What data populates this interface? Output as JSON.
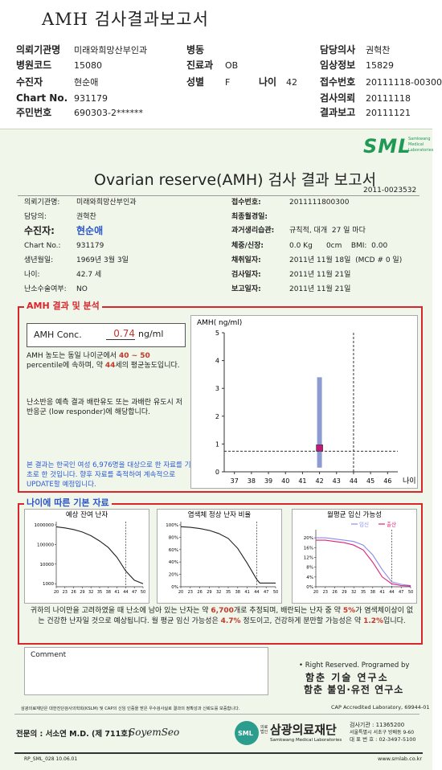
{
  "header": {
    "title": "AMH 검사결과보고서",
    "fields": [
      {
        "label": "의뢰기관명",
        "value": "미래와희망산부인과"
      },
      {
        "label": "병동"
      },
      {
        "label": "담당의사",
        "value": "권혁찬"
      },
      {
        "label": "병원코드",
        "value": "15080"
      },
      {
        "label": "진료과",
        "value": "OB"
      },
      {
        "label": "임상정보",
        "value": "15829"
      },
      {
        "label": "수진자",
        "value": "현순애"
      },
      {
        "label": "성별",
        "value": "F"
      },
      {
        "label": "나이",
        "value": "42"
      },
      {
        "label": "접수번호",
        "value": "20111118-00300"
      },
      {
        "label": "Chart No.",
        "value": "931179"
      },
      {
        "label": "검사의뢰",
        "value": "20111118"
      },
      {
        "label": "주민번호",
        "value": "690303-2******"
      },
      {
        "label": "결과보고",
        "value": "20111121"
      }
    ]
  },
  "report": {
    "logo": "SML",
    "logo_sub": [
      "Samkwang",
      "Medical",
      "Laboratories"
    ],
    "title": "Ovarian reserve(AMH) 검사 결과 보고서",
    "report_no": "2011-0023532",
    "left_fields": [
      {
        "label": "의뢰기관명:",
        "value": "미래와희망산부인과"
      },
      {
        "label": "담당의:",
        "value": "권혁찬"
      },
      {
        "label": "수진자:",
        "value": "현순애"
      },
      {
        "label": "Chart No.:",
        "value": "931179"
      },
      {
        "label": "생년월일:",
        "value": "1969년 3월 3일"
      },
      {
        "label": "나이:",
        "value": "42.7 세"
      },
      {
        "label": "난소수술여부:",
        "value": "NO"
      }
    ],
    "right_fields": [
      {
        "label": "접수번호:",
        "value": "2011111800300"
      },
      {
        "label": "최종월경일:"
      },
      {
        "label": "과거생리습관:",
        "value": "규칙적, 대개  27 일 마다"
      },
      {
        "label": "체중/신장:",
        "value": "0.0 Kg      0cm    BMI:  0.00"
      },
      {
        "label": "채취일자:",
        "value": "2011년 11월 18일  (MCD # 0 일)"
      },
      {
        "label": "검사일자:",
        "value": "2011년 11월 21일"
      },
      {
        "label": "보고일자:",
        "value": "2011년 11월 21일"
      }
    ]
  },
  "result": {
    "heading": "AMH 결과 및 분석",
    "conc_label": "AMH Conc.",
    "conc_value": 0.74,
    "conc_unit": "ng/ml",
    "text1": [
      {
        "text": "AMH 농도는 동일 나이군에서 "
      },
      {
        "text": "40 ~ 50",
        "highlight": true
      },
      {
        "text": " percentile에 속하며, 약 "
      },
      {
        "text": "44",
        "highlight": true
      },
      {
        "text": "세의 평균농도입니다."
      }
    ],
    "text2": "난소반응 예측 결과 배란유도 또는 과배란 유도시 저반응군 (low responder)에 해당합니다.",
    "note": "본 결과는 한국인 여성 6,976명을 대상으로 한 자료를 기초로 한 것입니다. 향후 자료를 축적하여 계속적으로 UPDATE할 예정입니다.",
    "chart": {
      "type": "range",
      "y_label": "AMH( ng/ml)",
      "x_label": "나이",
      "xlim": [
        36.4,
        46.6
      ],
      "ylim": [
        0,
        5
      ],
      "xticks": [
        37,
        38,
        39,
        40,
        41,
        42,
        43,
        44,
        45,
        46
      ],
      "yticks": [
        0,
        1,
        2,
        3,
        4,
        5
      ],
      "range_age": 42,
      "range_low": 0.15,
      "range_high": 3.4,
      "reference_age": 44,
      "marker_color": "#c2187a",
      "range_color": "#8c9cd2"
    }
  },
  "basics": {
    "heading": "나이에 따른 기본 자료",
    "marker_x": 44,
    "charts": [
      {
        "type": "line",
        "title": "예상 잔여 난자",
        "log": true,
        "x": [
          20,
          23,
          26,
          29,
          32,
          35,
          38,
          41,
          44,
          47,
          50
        ],
        "xlim": [
          20,
          50
        ],
        "xticks": [
          20,
          23,
          26,
          29,
          32,
          35,
          38,
          41,
          44,
          47,
          50
        ],
        "ylim": [
          700,
          1000000
        ],
        "yticks": [
          1000,
          10000,
          100000,
          1000000
        ],
        "series": [
          {
            "color": "#222222",
            "values": [
              800000,
              700000,
              580000,
              430000,
              280000,
              150000,
              70000,
              22000,
              4500,
              1500,
              1000
            ]
          }
        ]
      },
      {
        "type": "line",
        "title": "염색체 정상 난자 비율",
        "x": [
          20,
          23,
          26,
          29,
          32,
          35,
          38,
          41,
          44,
          45,
          47,
          50
        ],
        "xlim": [
          20,
          50
        ],
        "xticks": [
          20,
          23,
          26,
          29,
          32,
          35,
          38,
          41,
          44,
          47,
          50
        ],
        "ylim": [
          0,
          100
        ],
        "yticks": [
          {
            "value": 0,
            "label": "0%"
          },
          {
            "value": 20,
            "label": "20%"
          },
          {
            "value": 40,
            "label": "40%"
          },
          {
            "value": 60,
            "label": "60%"
          },
          {
            "value": 80,
            "label": "80%"
          },
          {
            "value": 100,
            "label": "100%"
          }
        ],
        "series": [
          {
            "color": "#222222",
            "values": [
              97,
              96,
              94,
              91,
              86,
              78,
              62,
              38,
              12,
              6,
              6,
              6
            ]
          }
        ]
      },
      {
        "type": "line",
        "title": "월평균 임신 가능성",
        "x": [
          20,
          23,
          26,
          29,
          32,
          35,
          38,
          41,
          44,
          47,
          50
        ],
        "xlim": [
          20,
          50
        ],
        "xticks": [
          20,
          23,
          26,
          29,
          32,
          35,
          38,
          41,
          44,
          47,
          50
        ],
        "ylim": [
          0,
          22
        ],
        "yticks": [
          {
            "value": 0,
            "label": "0%"
          },
          {
            "value": 4,
            "label": "4%"
          },
          {
            "value": 8,
            "label": "8%"
          },
          {
            "value": 12,
            "label": "12%"
          },
          {
            "value": 16,
            "label": "16%"
          },
          {
            "value": 20,
            "label": "20%"
          }
        ],
        "series": [
          {
            "name": "임신",
            "color": "#8a8cf0",
            "values": [
              20,
              20,
              19.5,
              19,
              18.5,
              17,
              13,
              7,
              2,
              1,
              0.5
            ]
          },
          {
            "name": "출산",
            "color": "#e0207a",
            "values": [
              19,
              19,
              18.5,
              18,
              17,
              15,
              10,
              4,
              1.2,
              0.5,
              0.3
            ]
          }
        ]
      }
    ],
    "summary": [
      {
        "text": "귀하의 나이만을 고려하였을 때 난소에 남아 있는 난자는 약 "
      },
      {
        "text": "6,700",
        "highlight": true
      },
      {
        "text": "개로 추정되며, 배란되는 난자 중 약 "
      },
      {
        "text": "5%",
        "highlight": true
      },
      {
        "text": "가 염색체이상이 없는 건강한 난자일 것으로 예상됩니다. 월 평균 임신 가능성은 "
      },
      {
        "text": "4.7%",
        "highlight": true
      },
      {
        "text": " 정도이고, 건강하게 분만할 가능성은 약 "
      },
      {
        "text": "1.2%",
        "highlight": true
      },
      {
        "text": "입니다."
      }
    ]
  },
  "comment": "Comment",
  "credits": [
    "• Right Reserved. Programed by",
    "함춘 기술 연구소",
    "함춘 불임·유전 연구소"
  ],
  "footer": {
    "notice": "삼광의료재단은 대한진단검사의학회(KSLM) 및 CAP의 신임 인증을 받은 우수검사실로 결과의 정확성과 신뢰도를 보증합니다.",
    "cap": "CAP  Accredited  Laboratory,  69944-01",
    "doctor": "전문의 : 서소연 M.D. (제 711호)",
    "signature": "SoyemSeo",
    "org_prefix": "의료법인",
    "org": "삼광의료재단",
    "org_en": "Samkwang Medical Laboratories",
    "info": [
      "검사기관 : 11365200",
      "서울특별시 서초구 방배동 9-60",
      "대 표 번 호 : 02-3497-5100"
    ],
    "form_no": "RP_SML_028  10.06.01",
    "url": "www.smlab.co.kr"
  }
}
